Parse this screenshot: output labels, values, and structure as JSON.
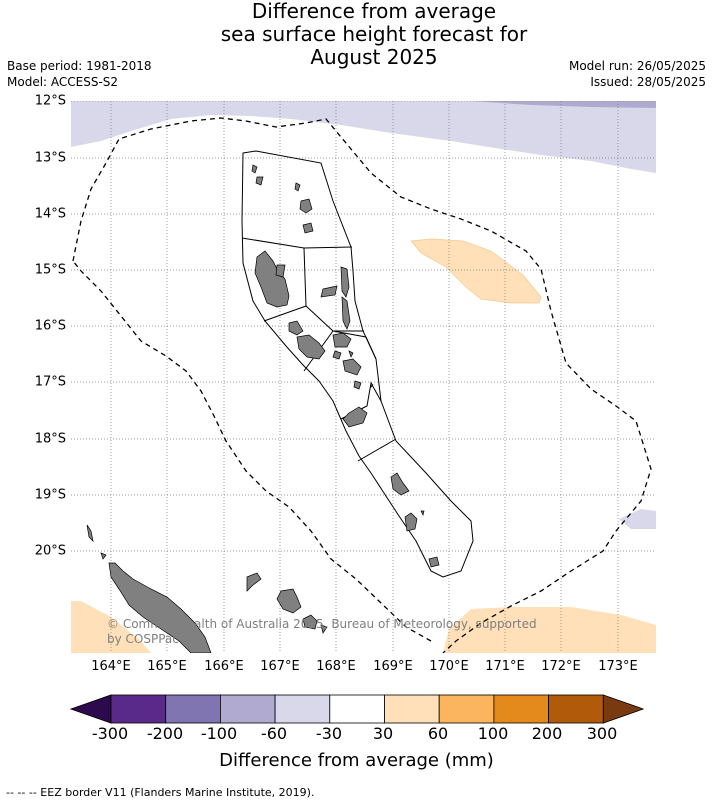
{
  "title": {
    "line1": "Difference from average",
    "line2": "sea surface height forecast for",
    "line3": "August 2025"
  },
  "meta": {
    "base_period": "Base period: 1981-2018",
    "model": "Model: ACCESS-S2",
    "model_run": "Model run: 26/05/2025",
    "issued": "Issued: 28/05/2025"
  },
  "map": {
    "lat_labels": [
      "12°S",
      "13°S",
      "14°S",
      "15°S",
      "16°S",
      "17°S",
      "18°S",
      "19°S",
      "20°S"
    ],
    "lon_labels": [
      "164°E",
      "165°E",
      "166°E",
      "167°E",
      "168°E",
      "169°E",
      "170°E",
      "171°E",
      "172°E",
      "173°E"
    ],
    "copyright_line1": "© Commonwealth of Australia 2025, Bureau of Meteorology, supported",
    "copyright_line2": "by COSPPac",
    "land_color": "#808080",
    "eez_style": "dashed"
  },
  "colorbar": {
    "ticks": [
      "-300",
      "-200",
      "-100",
      "-60",
      "-30",
      "30",
      "60",
      "100",
      "200",
      "300"
    ],
    "colors": [
      "#2d0a4e",
      "#5a2a8a",
      "#8075b0",
      "#b0aad0",
      "#d8d8ea",
      "#ffffff",
      "#ffe0b8",
      "#fbb55e",
      "#e48a1c",
      "#b05a0a",
      "#7a3a10"
    ],
    "label": "Difference from average (mm)"
  },
  "footer": "--  --  -- EEZ border V11 (Flanders Marine Institute, 2019)."
}
